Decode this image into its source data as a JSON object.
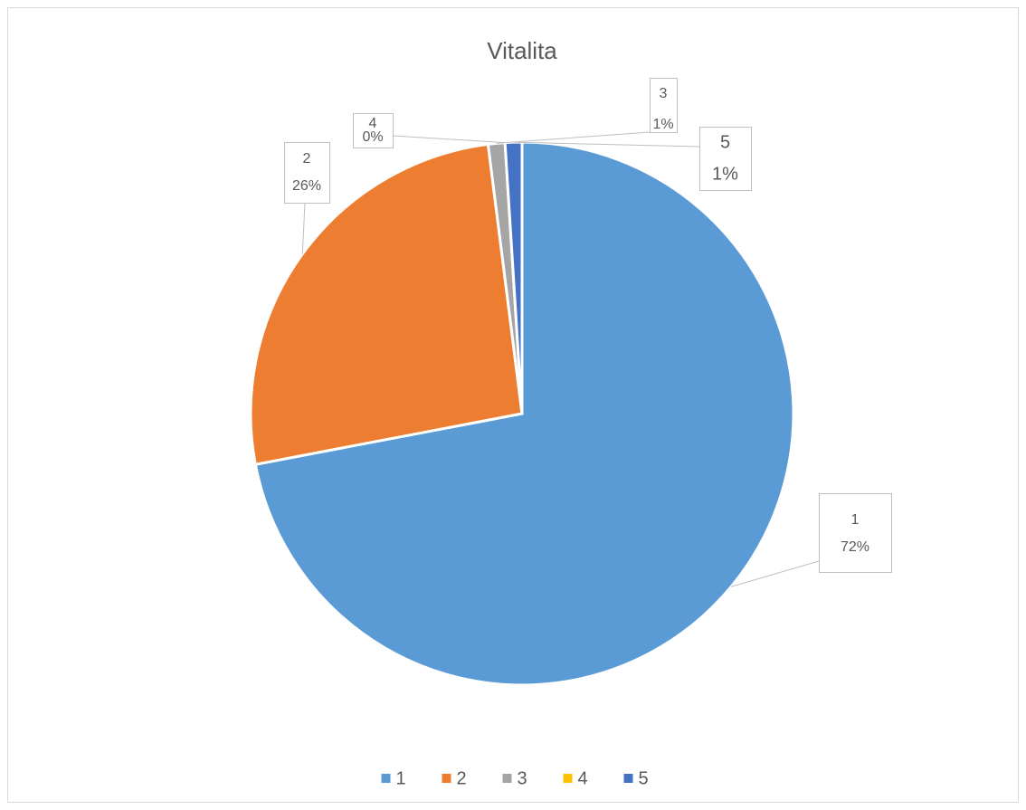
{
  "chart_data": {
    "type": "pie",
    "title": "Vitalita",
    "categories": [
      "1",
      "2",
      "3",
      "4",
      "5"
    ],
    "values": [
      72,
      26,
      1,
      0,
      1
    ],
    "value_labels": [
      "72%",
      "26%",
      "1%",
      "0%",
      "1%"
    ],
    "colors": [
      "#5b9bd5",
      "#ed7d31",
      "#a5a5a5",
      "#ffc000",
      "#4472c4"
    ],
    "legend": "bottom"
  }
}
